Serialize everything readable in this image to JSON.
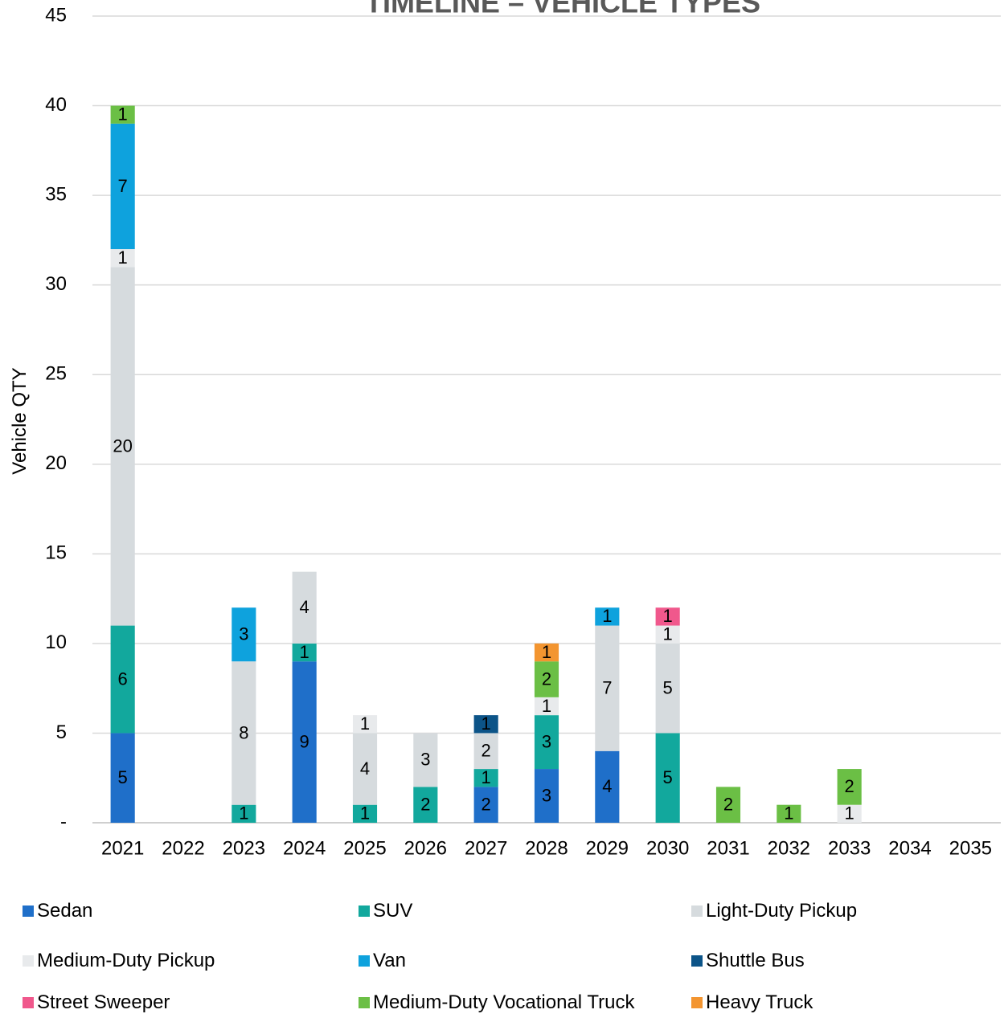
{
  "chart_data": {
    "type": "bar",
    "stacked": true,
    "title": "TIMELINE – VEHICLE TYPES",
    "ylabel": "Vehicle QTY",
    "xlabel": "",
    "ylim": [
      0,
      45
    ],
    "y_ticks": [
      {
        "value": 0,
        "label": "-"
      },
      {
        "value": 5,
        "label": "5"
      },
      {
        "value": 10,
        "label": "10"
      },
      {
        "value": 15,
        "label": "15"
      },
      {
        "value": 20,
        "label": "20"
      },
      {
        "value": 25,
        "label": "25"
      },
      {
        "value": 30,
        "label": "30"
      },
      {
        "value": 35,
        "label": "35"
      },
      {
        "value": 40,
        "label": "40"
      },
      {
        "value": 45,
        "label": "45"
      }
    ],
    "grid": true,
    "legend_position": "bottom",
    "categories": [
      "2021",
      "2022",
      "2023",
      "2024",
      "2025",
      "2026",
      "2027",
      "2028",
      "2029",
      "2030",
      "2031",
      "2032",
      "2033",
      "2034",
      "2035"
    ],
    "series": [
      {
        "name": "Sedan",
        "color": "#1f6fc9",
        "values": [
          5,
          0,
          0,
          9,
          0,
          0,
          2,
          3,
          4,
          0,
          0,
          0,
          0,
          0,
          0
        ]
      },
      {
        "name": "SUV",
        "color": "#12a89d",
        "values": [
          6,
          0,
          1,
          1,
          1,
          2,
          1,
          3,
          0,
          5,
          0,
          0,
          0,
          0,
          0
        ]
      },
      {
        "name": "Light-Duty Pickup",
        "color": "#d6dbde",
        "values": [
          20,
          0,
          8,
          4,
          4,
          3,
          2,
          0,
          7,
          5,
          0,
          0,
          0,
          0,
          0
        ]
      },
      {
        "name": "Medium-Duty Pickup",
        "color": "#e8eaec",
        "values": [
          1,
          0,
          0,
          0,
          1,
          0,
          0,
          1,
          0,
          1,
          0,
          0,
          1,
          0,
          0
        ]
      },
      {
        "name": "Van",
        "color": "#0ea2dd",
        "values": [
          7,
          0,
          3,
          0,
          0,
          0,
          0,
          0,
          1,
          0,
          0,
          0,
          0,
          0,
          0
        ]
      },
      {
        "name": "Shuttle Bus",
        "color": "#0c5488",
        "values": [
          0,
          0,
          0,
          0,
          0,
          0,
          1,
          0,
          0,
          0,
          0,
          0,
          0,
          0,
          0
        ]
      },
      {
        "name": "Street Sweeper",
        "color": "#f0588c",
        "values": [
          0,
          0,
          0,
          0,
          0,
          0,
          0,
          0,
          0,
          1,
          0,
          0,
          0,
          0,
          0
        ]
      },
      {
        "name": "Medium-Duty Vocational Truck",
        "color": "#6bbf45",
        "values": [
          1,
          0,
          0,
          0,
          0,
          0,
          0,
          2,
          0,
          0,
          2,
          1,
          2,
          0,
          0
        ]
      },
      {
        "name": "Heavy Truck",
        "color": "#f39530",
        "values": [
          0,
          0,
          0,
          0,
          0,
          0,
          0,
          1,
          0,
          0,
          0,
          0,
          0,
          0,
          0
        ]
      }
    ]
  }
}
